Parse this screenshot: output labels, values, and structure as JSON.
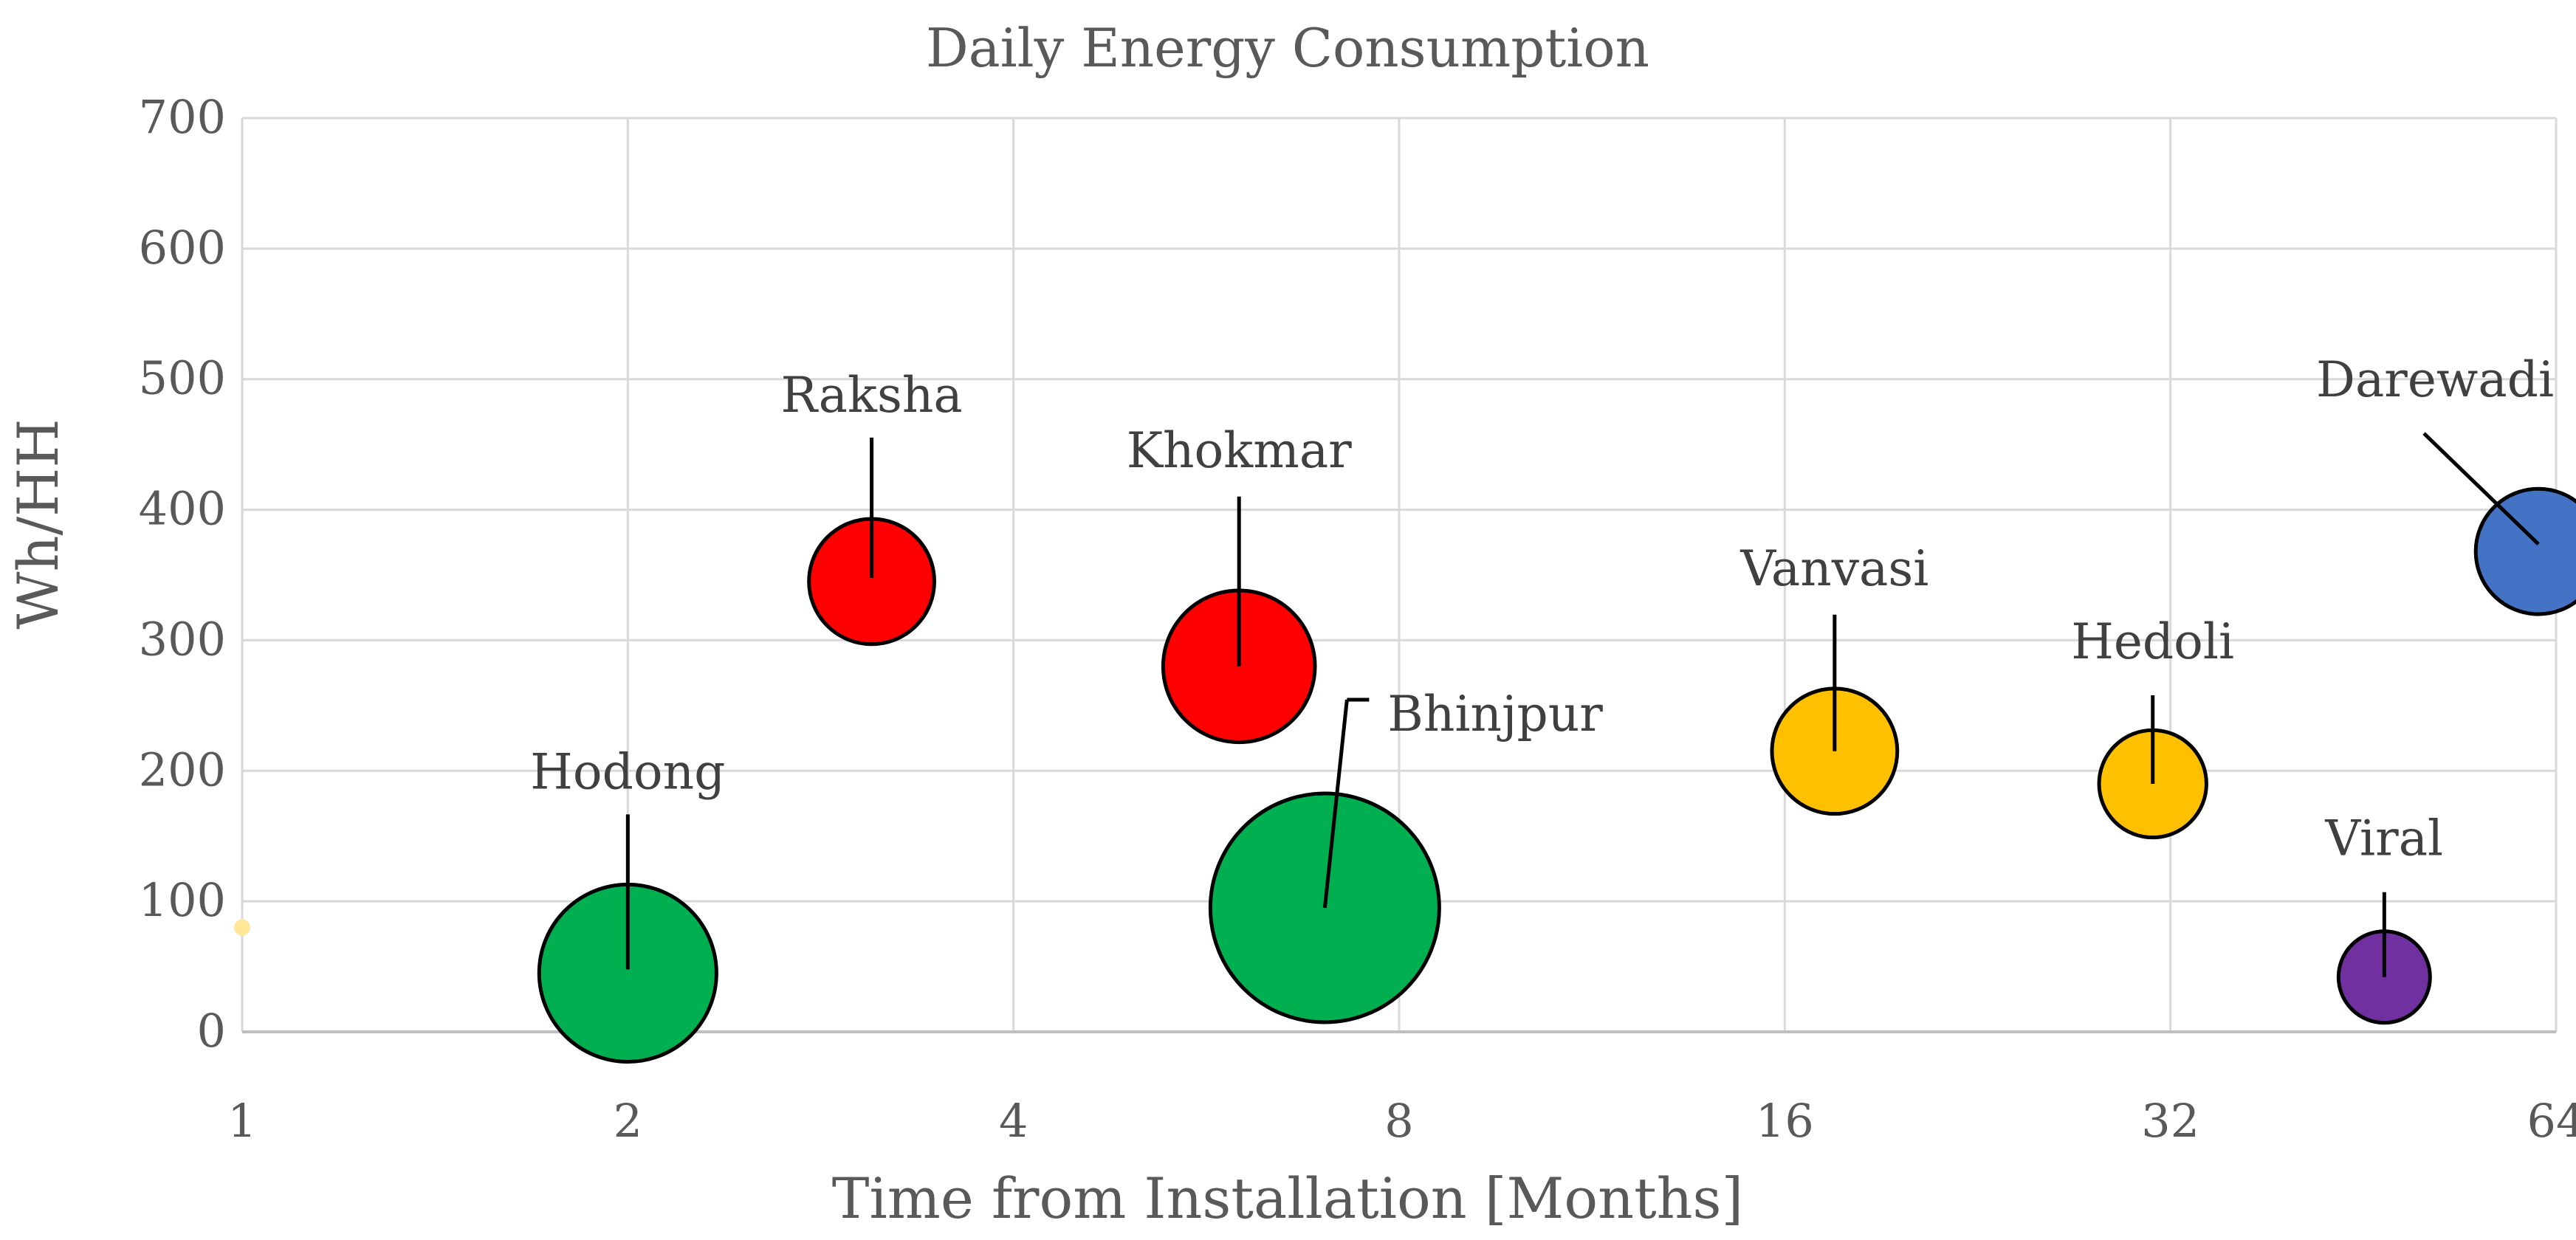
{
  "chart_data": {
    "type": "bubble",
    "title": "Daily Energy Consumption",
    "xlabel": "Time from Installation [Months]",
    "ylabel": "Wh/HH",
    "x_scale": "log2",
    "xlim": [
      1,
      64
    ],
    "ylim": [
      0,
      700
    ],
    "x_ticks": [
      "1",
      "2",
      "4",
      "8",
      "16",
      "32",
      "64"
    ],
    "y_ticks": [
      "0",
      "100",
      "200",
      "300",
      "400",
      "500",
      "600",
      "700"
    ],
    "grid": true,
    "points": [
      {
        "label": "Hodong",
        "x": 2.0,
        "y": 45,
        "size": 60,
        "color": "#00b050"
      },
      {
        "label": "Raksha",
        "x": 3.1,
        "y": 345,
        "size": 30,
        "color": "#ff0000"
      },
      {
        "label": "Khokmar",
        "x": 6.0,
        "y": 280,
        "size": 44,
        "color": "#ff0000"
      },
      {
        "label": "Bhinjpur",
        "x": 7.0,
        "y": 95,
        "size": 100,
        "color": "#00b050"
      },
      {
        "label": "Vanvasi",
        "x": 17.5,
        "y": 215,
        "size": 30,
        "color": "#ffc000"
      },
      {
        "label": "Hedoli",
        "x": 31.0,
        "y": 190,
        "size": 22,
        "color": "#ffc000"
      },
      {
        "label": "Viral",
        "x": 47.0,
        "y": 42,
        "size": 16,
        "color": "#7030a0"
      },
      {
        "label": "Darewadi",
        "x": 62.0,
        "y": 368,
        "size": 30,
        "color": "#4472c4"
      },
      {
        "label": "",
        "x": 1.0,
        "y": 80,
        "size": 0.5,
        "color": "#ffe699"
      }
    ]
  }
}
